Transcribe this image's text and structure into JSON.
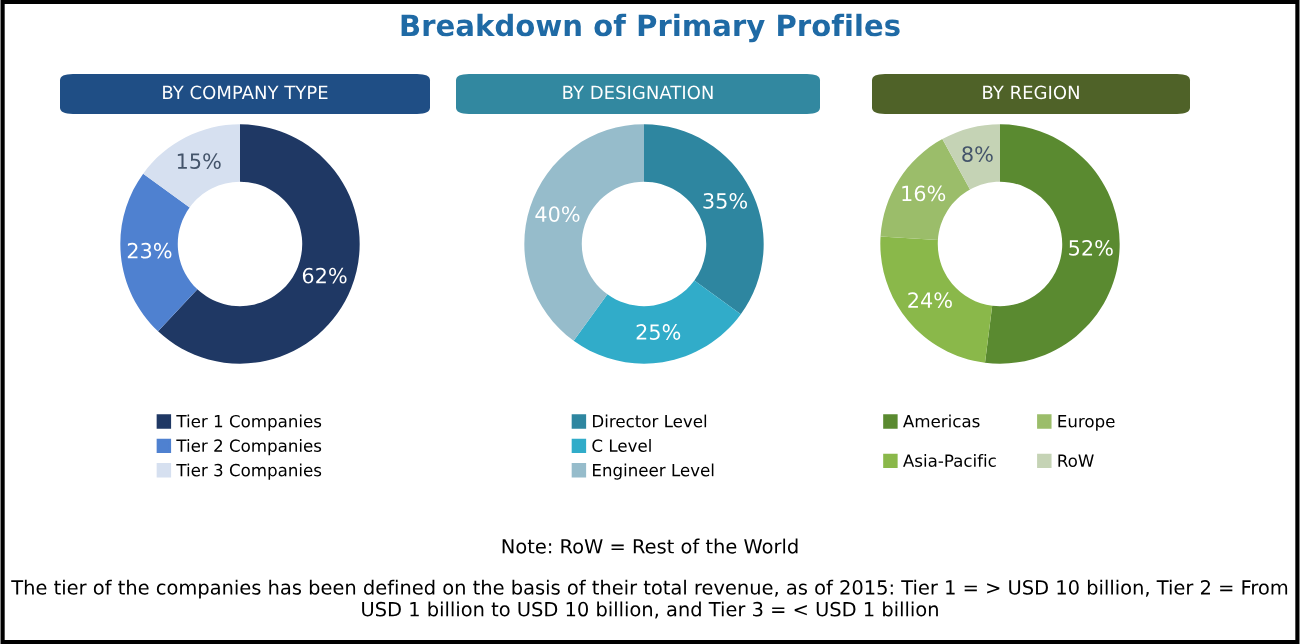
{
  "chart_data": [
    {
      "type": "donut",
      "title": "BY COMPANY TYPE",
      "annotations": [
        "Breakdown of Primary Profiles"
      ],
      "categories": [
        "Tier 1 Companies",
        "Tier 2 Companies",
        "Tier 3 Companies"
      ],
      "values": [
        62,
        23,
        15
      ],
      "value_labels": [
        "62%",
        "23%",
        "15%"
      ],
      "colors": [
        "#1f3864",
        "#4f81d0",
        "#d6e0f0"
      ],
      "legend": "bottom"
    },
    {
      "type": "donut",
      "title": "BY DESIGNATION",
      "categories": [
        "Director Level",
        "C Level",
        "Engineer Level"
      ],
      "values": [
        35,
        25,
        40
      ],
      "value_labels": [
        "35%",
        "25%",
        "40%"
      ],
      "colors": [
        "#2e86a0",
        "#31acc9",
        "#96bccb"
      ],
      "legend": "bottom"
    },
    {
      "type": "donut",
      "title": "BY REGION",
      "annotations": [
        "Note: RoW = Rest of the World",
        "The tier of the companies has been defined on the basis of their total revenue, as of 2015: Tier 1 = > USD 10 billion, Tier 2 = From USD 1 billion to USD 10 billion, and Tier 3 = < USD 1 billion"
      ],
      "categories": [
        "Americas",
        "Asia-Pacific",
        "Europe",
        "RoW"
      ],
      "values": [
        52,
        24,
        16,
        8
      ],
      "value_labels": [
        "52%",
        "24%",
        "16%",
        "8%"
      ],
      "colors": [
        "#5a8a30",
        "#8ab84a",
        "#9bbd6a",
        "#c5d3b5"
      ],
      "legend": "bottom"
    }
  ]
}
